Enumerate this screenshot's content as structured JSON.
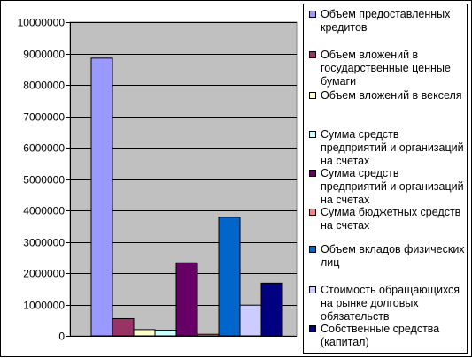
{
  "chart_data": {
    "type": "bar",
    "ylim": [
      0,
      10000000
    ],
    "yticks": [
      "0",
      "1000000",
      "2000000",
      "3000000",
      "4000000",
      "5000000",
      "6000000",
      "7000000",
      "8000000",
      "9000000",
      "10000000"
    ],
    "grid": true,
    "legend_position": "right",
    "plot_background": "#c0c0c0",
    "series": [
      {
        "name": "Объем предоставленных кредитов",
        "value": 8850000,
        "color": "#9999ff"
      },
      {
        "name": "Объем вложений в государственные ценные бумаги",
        "value": 550000,
        "color": "#993366"
      },
      {
        "name": "Объем вложений в векселя",
        "value": 200000,
        "color": "#ffffcc"
      },
      {
        "name": "Сумма средств предприятий и организаций на счетах",
        "value": 180000,
        "color": "#ccffff"
      },
      {
        "name": "Сумма средств предприятий и организаций на счетах",
        "value": 2330000,
        "color": "#660066"
      },
      {
        "name": "Сумма бюджетных средств на счетах",
        "value": 50000,
        "color": "#ff8080"
      },
      {
        "name": "Объем вкладов физических лиц",
        "value": 3780000,
        "color": "#0066cc"
      },
      {
        "name": "Стоимость обращающихся на рынке долговых обязательств",
        "value": 980000,
        "color": "#ccccff"
      },
      {
        "name": "Собственные средства (капитал)",
        "value": 1680000,
        "color": "#000080"
      }
    ]
  }
}
